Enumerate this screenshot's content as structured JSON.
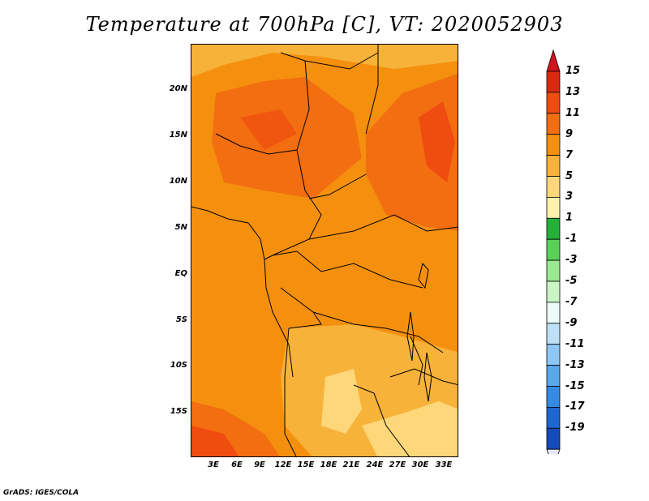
{
  "title": "Temperature at 700hPa [C], VT: 2020052903",
  "credit": "GrADS: IGES/COLA",
  "map": {
    "lat_labels": [
      "20N",
      "15N",
      "10N",
      "5N",
      "EQ",
      "5S",
      "10S",
      "15S"
    ],
    "lon_labels": [
      "3E",
      "6E",
      "9E",
      "12E",
      "15E",
      "18E",
      "21E",
      "24E",
      "27E",
      "30E",
      "33E"
    ]
  },
  "colorbar": {
    "labels": [
      "15",
      "13",
      "11",
      "9",
      "7",
      "5",
      "3",
      "1",
      "-1",
      "-3",
      "-5",
      "-7",
      "-9",
      "-11",
      "-13",
      "-15",
      "-17",
      "-19"
    ],
    "colors": [
      "#d72a10",
      "#ef4c10",
      "#f26e10",
      "#f5900e",
      "#f7b23a",
      "#fdd779",
      "#fef2ad",
      "#24b039",
      "#5bd059",
      "#9be893",
      "#cbf5c4",
      "#ecfbf8",
      "#bde2f8",
      "#8ec7f4",
      "#5aa7ec",
      "#3689e4",
      "#1f66d2",
      "#1649b9",
      "#0d2f8c",
      "#0a1c64"
    ],
    "over_color": "#d0141e",
    "under_color": "#e6e6ff"
  }
}
